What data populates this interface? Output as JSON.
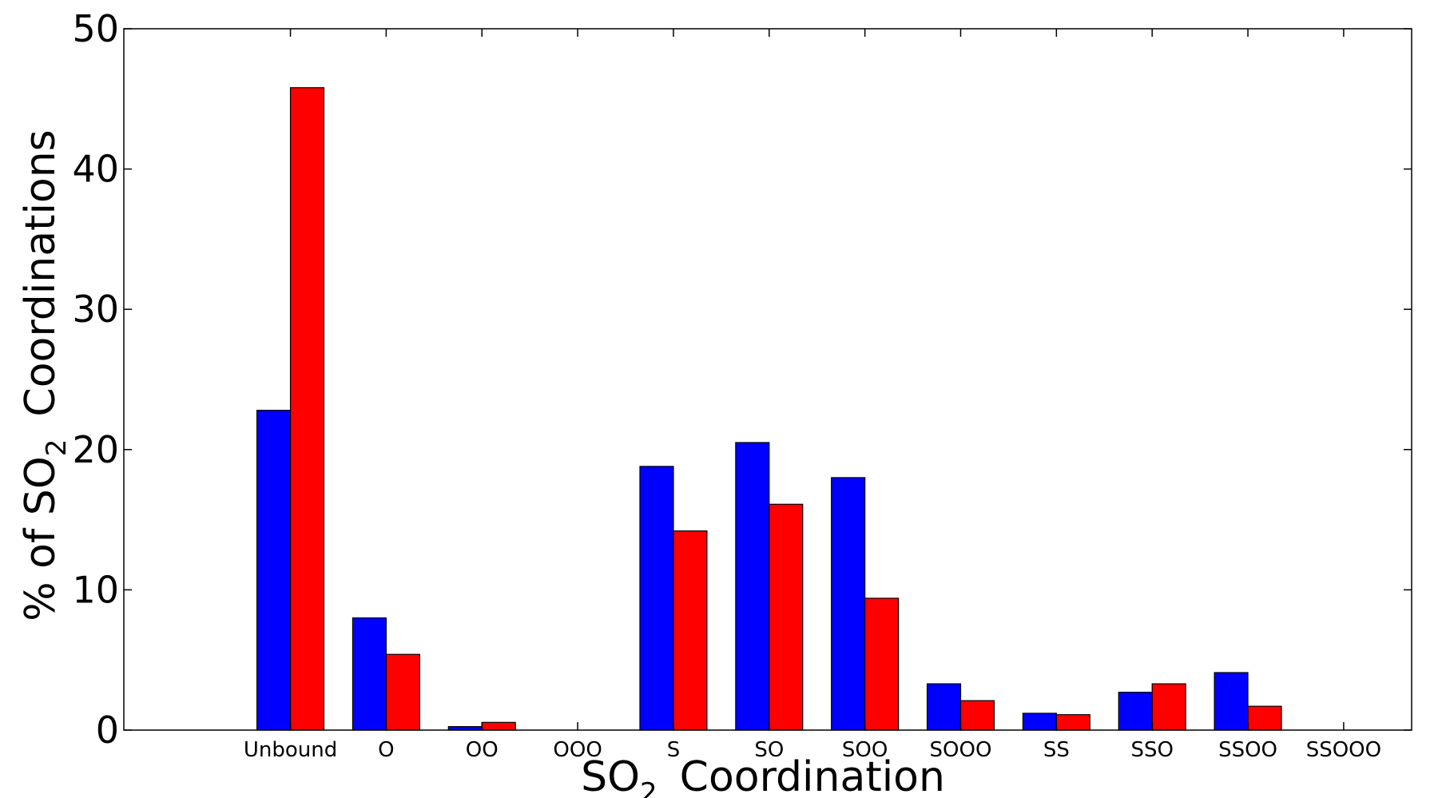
{
  "chart_data": {
    "type": "bar",
    "title": "",
    "xlabel": {
      "main": "SO",
      "sub": "2",
      "rest": "Coordination"
    },
    "ylabel": {
      "main": "% of SO",
      "sub": "2",
      "rest": "Coordinations"
    },
    "ylim": [
      0,
      50
    ],
    "yticks": [
      "0",
      "10",
      "20",
      "30",
      "40",
      "50"
    ],
    "categories": [
      "Unbound",
      "O",
      "OO",
      "OOO",
      "S",
      "SO",
      "SOO",
      "SOOO",
      "SS",
      "SSO",
      "SSOO",
      "SSOOO"
    ],
    "series": [
      {
        "color": "#0000ff",
        "values": [
          22.8,
          8.0,
          0.25,
          0.0,
          18.8,
          20.5,
          18.0,
          3.3,
          1.2,
          2.7,
          4.1,
          0.0
        ]
      },
      {
        "color": "#ff0000",
        "values": [
          45.8,
          5.4,
          0.55,
          0.0,
          14.2,
          16.1,
          9.4,
          2.1,
          1.1,
          3.3,
          1.7,
          0.0
        ]
      }
    ],
    "grid": false,
    "legend": "none"
  }
}
